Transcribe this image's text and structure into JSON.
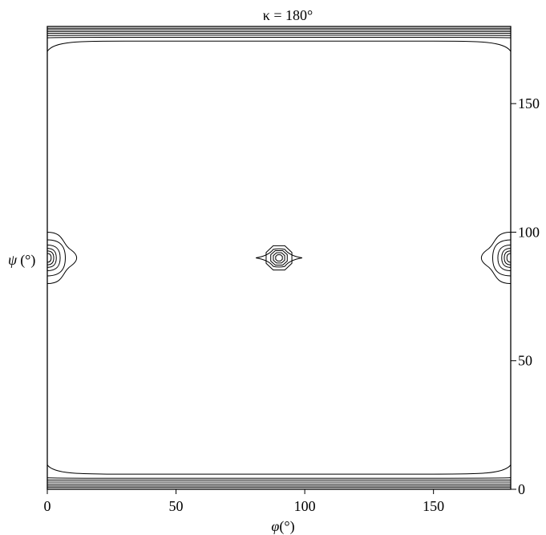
{
  "chart_data": {
    "type": "contour",
    "title": "κ = 180°",
    "xlabel": {
      "symbol": "φ",
      "unit": "(°)"
    },
    "ylabel": {
      "symbol": "ψ",
      "unit": "(°)"
    },
    "xlim": [
      0,
      180
    ],
    "ylim": [
      0,
      180
    ],
    "xticks": [
      0,
      50,
      100,
      150
    ],
    "yticks": [
      0,
      50,
      100,
      150
    ],
    "y_axis_side": "right",
    "grid": false,
    "contours": {
      "top_band": {
        "levels": [
          {
            "y": 179.3,
            "y_mid": 179.3
          },
          {
            "y": 178.7,
            "y_mid": 178.7
          },
          {
            "y": 178.0,
            "y_mid": 178.0
          },
          {
            "y": 177.3,
            "y_mid": 177.3
          },
          {
            "y": 176.5,
            "y_mid": 176.6
          },
          {
            "y": 175.6,
            "y_mid": 175.8
          },
          {
            "y": 170.3,
            "y_mid": 174.3
          }
        ]
      },
      "bottom_band": {
        "levels": [
          {
            "y": 0.7,
            "y_mid": 0.7
          },
          {
            "y": 1.3,
            "y_mid": 1.3
          },
          {
            "y": 2.0,
            "y_mid": 2.0
          },
          {
            "y": 2.8,
            "y_mid": 2.8
          },
          {
            "y": 3.6,
            "y_mid": 3.6
          },
          {
            "y": 4.5,
            "y_mid": 4.3
          },
          {
            "y": 9.5,
            "y_mid": 5.9
          }
        ]
      },
      "center_peak": {
        "x": 90,
        "y": 90,
        "rings": [
          {
            "rx": 9.0,
            "ry": 3.3
          },
          {
            "rx": 5.0,
            "ry": 4.7
          },
          {
            "rx": 3.2,
            "ry": 2.8
          },
          {
            "rx": 2.2,
            "ry": 2.0
          },
          {
            "rx": 1.3,
            "ry": 1.2
          }
        ]
      },
      "edge_peaks": [
        {
          "x": 0,
          "y": 90,
          "rings": [
            {
              "rx": 11.0,
              "ry": 10.0
            },
            {
              "rx": 7.0,
              "ry": 7.0
            },
            {
              "rx": 5.0,
              "ry": 5.0
            },
            {
              "rx": 3.5,
              "ry": 3.7
            },
            {
              "rx": 2.5,
              "ry": 2.7
            },
            {
              "rx": 1.5,
              "ry": 1.7
            }
          ]
        },
        {
          "x": 180,
          "y": 90,
          "rings": [
            {
              "rx": 11.0,
              "ry": 10.0
            },
            {
              "rx": 7.0,
              "ry": 7.0
            },
            {
              "rx": 5.0,
              "ry": 5.0
            },
            {
              "rx": 3.5,
              "ry": 3.7
            },
            {
              "rx": 2.5,
              "ry": 2.7
            },
            {
              "rx": 1.5,
              "ry": 1.7
            }
          ]
        }
      ]
    }
  }
}
